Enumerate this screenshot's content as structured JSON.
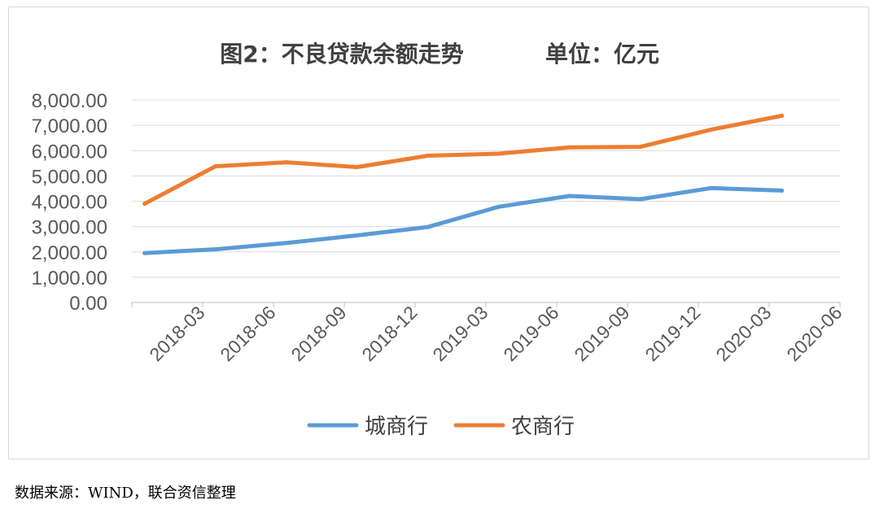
{
  "chart_data": {
    "type": "line",
    "title": "图2：不良贷款余额走势",
    "unit_label": "单位：亿元",
    "categories": [
      "2018-03",
      "2018-06",
      "2018-09",
      "2018-12",
      "2019-03",
      "2019-06",
      "2019-09",
      "2019-12",
      "2020-03",
      "2020-06"
    ],
    "ylim": [
      0,
      8000
    ],
    "yticks": [
      "0.00",
      "1,000.00",
      "2,000.00",
      "3,000.00",
      "4,000.00",
      "5,000.00",
      "6,000.00",
      "7,000.00",
      "8,000.00"
    ],
    "grid": true,
    "legend_position": "bottom",
    "series": [
      {
        "name": "城商行",
        "color": "#5b9bd5",
        "values": [
          1950,
          2100,
          2350,
          2650,
          2980,
          3780,
          4210,
          4080,
          4520,
          4420
        ]
      },
      {
        "name": "农商行",
        "color": "#ed7d31",
        "values": [
          3900,
          5380,
          5540,
          5350,
          5800,
          5880,
          6130,
          6150,
          6830,
          7380
        ]
      }
    ]
  },
  "source_note": "数据来源：WIND，联合资信整理"
}
